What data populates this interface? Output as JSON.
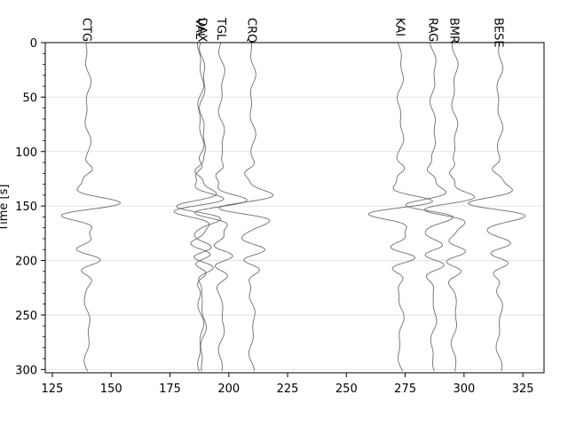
{
  "chart_data": {
    "type": "line",
    "title": "",
    "xlabel": "",
    "ylabel": "Time [s]",
    "xlim": [
      122,
      334
    ],
    "ylim": [
      303,
      0
    ],
    "y_inverted": true,
    "grid": "horizontal",
    "trace_color": "#555555",
    "xticks": [
      "125",
      "150",
      "175",
      "200",
      "225",
      "250",
      "275",
      "300",
      "325"
    ],
    "xtick_values": [
      125,
      150,
      175,
      200,
      225,
      250,
      275,
      300,
      325
    ],
    "yticks": [
      "0",
      "50",
      "100",
      "150",
      "200",
      "250",
      "300"
    ],
    "ytick_values": [
      0,
      50,
      100,
      150,
      200,
      250,
      300
    ],
    "series": [
      {
        "name": "CTG",
        "offset": 140,
        "scale": 1.0,
        "phase": 0.0
      },
      {
        "name": "VAL",
        "offset": 188,
        "scale": 0.9,
        "phase": 1.1
      },
      {
        "name": "DAX",
        "offset": 189,
        "scale": 0.9,
        "phase": 2.3
      },
      {
        "name": "TGL",
        "offset": 197,
        "scale": 0.95,
        "phase": 0.7
      },
      {
        "name": "CRQ",
        "offset": 210,
        "scale": 1.0,
        "phase": 1.9
      },
      {
        "name": "KAI",
        "offset": 273,
        "scale": 1.05,
        "phase": 0.4
      },
      {
        "name": "RAG",
        "offset": 287,
        "scale": 0.95,
        "phase": 2.7
      },
      {
        "name": "BMR",
        "offset": 296,
        "scale": 0.95,
        "phase": 1.5
      },
      {
        "name": "BESE",
        "offset": 315,
        "scale": 1.0,
        "phase": 3.1
      }
    ]
  }
}
